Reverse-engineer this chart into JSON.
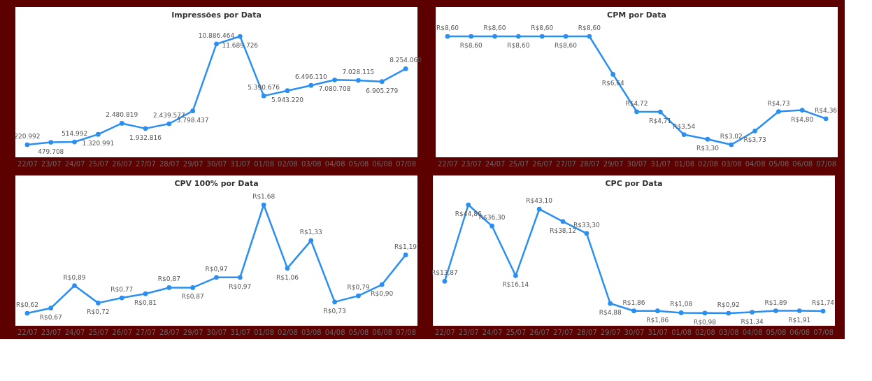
{
  "chart_data": [
    {
      "type": "line",
      "title": "Impressões por Data",
      "categories": [
        "22/07",
        "23/07",
        "24/07",
        "25/07",
        "26/07",
        "27/07",
        "28/07",
        "29/07",
        "30/07",
        "31/07",
        "01/08",
        "02/08",
        "03/08",
        "04/08",
        "05/08",
        "06/08",
        "07/08"
      ],
      "marker": "circle",
      "data_labels": true,
      "series": [
        {
          "color": "#2b8ff0",
          "values": [
            220992,
            479708,
            514992,
            1320991,
            2480819,
            1932816,
            2439577,
            3798437,
            10886464,
            11689726,
            5390676,
            5943220,
            6496110,
            7080708,
            7028115,
            6905279,
            8254060
          ],
          "value_labels": [
            "220.992",
            "479.708",
            "514.992",
            "1.320.991",
            "2.480.819",
            "1.932.816",
            "2.439.577",
            "3.798.437",
            "10.886.464",
            "11.689.726",
            "5.390.676",
            "5.943.220",
            "6.496.110",
            "7.080.708",
            "7.028.115",
            "6.905.279",
            "8.254.060"
          ]
        }
      ]
    },
    {
      "type": "line",
      "title": "CPM por Data",
      "categories": [
        "22/07",
        "23/07",
        "24/07",
        "25/07",
        "26/07",
        "27/07",
        "28/07",
        "29/07",
        "30/07",
        "31/07",
        "01/08",
        "02/08",
        "03/08",
        "04/08",
        "05/08",
        "06/08",
        "07/08"
      ],
      "marker": "circle",
      "data_labels": true,
      "series": [
        {
          "color": "#2b8ff0",
          "values": [
            8.6,
            8.6,
            8.6,
            8.6,
            8.6,
            8.6,
            8.6,
            6.64,
            4.72,
            4.71,
            3.54,
            3.3,
            3.02,
            3.73,
            4.73,
            4.8,
            4.36
          ],
          "value_labels": [
            "R$8,60",
            "R$8,60",
            "R$8,60",
            "R$8,60",
            "R$8,60",
            "R$8,60",
            "R$8,60",
            "R$6,64",
            "R$4,72",
            "R$4,71",
            "R$3,54",
            "R$3,30",
            "R$3,02",
            "R$3,73",
            "R$4,73",
            "R$4,80",
            "R$4,36"
          ]
        }
      ]
    },
    {
      "type": "line",
      "title": "CPV 100% por Data",
      "categories": [
        "22/07",
        "23/07",
        "24/07",
        "25/07",
        "26/07",
        "27/07",
        "28/07",
        "29/07",
        "30/07",
        "31/07",
        "01/08",
        "02/08",
        "03/08",
        "04/08",
        "05/08",
        "06/08",
        "07/08"
      ],
      "marker": "circle",
      "data_labels": true,
      "series": [
        {
          "color": "#2b8ff0",
          "values": [
            0.62,
            0.67,
            0.89,
            0.72,
            0.77,
            0.81,
            0.87,
            0.87,
            0.97,
            0.97,
            1.68,
            1.06,
            1.33,
            0.73,
            0.79,
            0.9,
            1.19
          ],
          "value_labels": [
            "R$0,62",
            "R$0,67",
            "R$0,89",
            "R$0,72",
            "R$0,77",
            "R$0,81",
            "R$0,87",
            "R$0,87",
            "R$0,97",
            "R$0,97",
            "R$1,68",
            "R$1,06",
            "R$1,33",
            "R$0,73",
            "R$0,79",
            "R$0,90",
            "R$1,19"
          ]
        }
      ]
    },
    {
      "type": "line",
      "title": "CPC por Data",
      "categories": [
        "22/07",
        "23/07",
        "24/07",
        "25/07",
        "26/07",
        "27/07",
        "28/07",
        "29/07",
        "30/07",
        "31/07",
        "01/08",
        "02/08",
        "03/08",
        "04/08",
        "05/08",
        "06/08",
        "07/08"
      ],
      "marker": "circle",
      "data_labels": true,
      "series": [
        {
          "color": "#2b8ff0",
          "values": [
            13.87,
            44.86,
            36.3,
            16.14,
            43.1,
            38.12,
            33.3,
            4.88,
            1.86,
            1.86,
            1.08,
            0.98,
            0.92,
            1.34,
            1.89,
            1.91,
            1.74
          ],
          "value_labels": [
            "R$13,87",
            "R$44,86",
            "R$36,30",
            "R$16,14",
            "R$43,10",
            "R$38,12",
            "R$33,30",
            "R$4,88",
            "R$1,86",
            "R$1,86",
            "R$1,08",
            "R$0,98",
            "R$0,92",
            "R$1,34",
            "R$1,89",
            "R$1,91",
            "R$1,74"
          ]
        }
      ]
    }
  ]
}
